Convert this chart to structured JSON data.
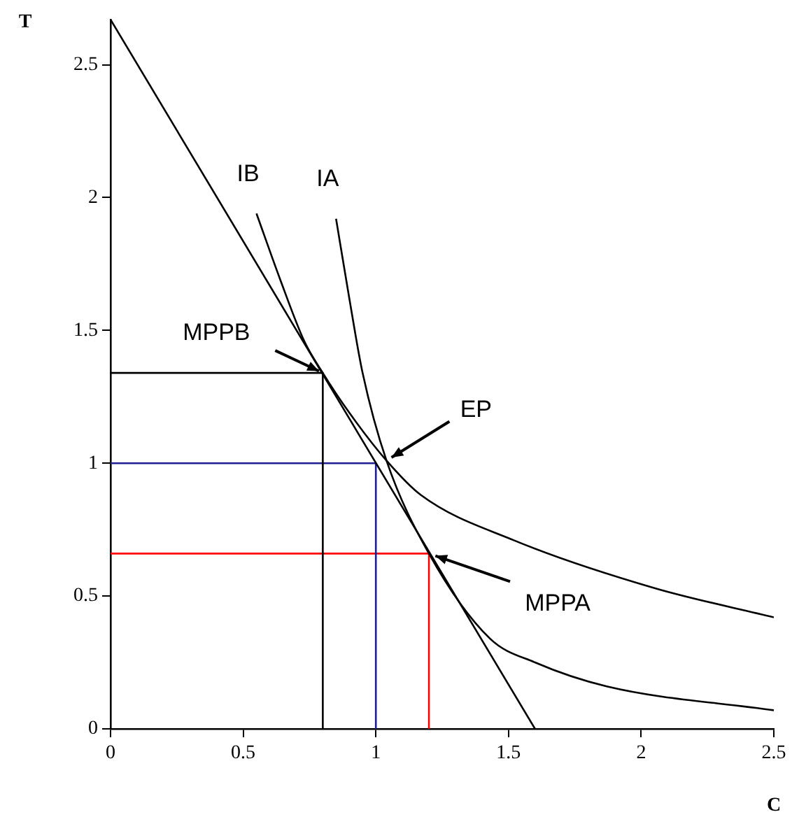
{
  "chart_data": {
    "type": "line",
    "xlabel": "C",
    "ylabel": "T",
    "xlim": [
      0,
      2.5
    ],
    "ylim": [
      0,
      2.67
    ],
    "xticks": [
      0,
      0.5,
      1,
      1.5,
      2,
      2.5
    ],
    "yticks": [
      0,
      0.5,
      1,
      1.5,
      2,
      2.5
    ],
    "grid": false,
    "legend": false,
    "marker": "none",
    "line_style": "solid",
    "series": [
      {
        "color": "#000000",
        "x": [
          0,
          1.6
        ],
        "values": [
          2.67,
          0
        ]
      },
      {
        "name": "IB",
        "color": "#000000",
        "x": [
          0.55,
          0.64,
          0.73,
          0.8,
          0.9,
          1.04,
          1.17,
          1.52,
          2.05,
          2.5
        ],
        "values": [
          1.94,
          1.69,
          1.46,
          1.34,
          1.19,
          1.01,
          0.88,
          0.71,
          0.53,
          0.42
        ]
      },
      {
        "name": "IA",
        "color": "#000000",
        "x": [
          0.85,
          0.9,
          0.95,
          1.04,
          1.2,
          1.43,
          1.6,
          1.87,
          2.5
        ],
        "values": [
          1.92,
          1.62,
          1.34,
          1.01,
          0.66,
          0.34,
          0.25,
          0.16,
          0.07
        ]
      },
      {
        "color": "#000000",
        "x": [
          0,
          0.8,
          0.8
        ],
        "values": [
          1.34,
          1.34,
          0
        ]
      },
      {
        "color": "#1f1f8f",
        "x": [
          0,
          1,
          1
        ],
        "values": [
          1,
          1,
          0
        ]
      },
      {
        "color": "#ff0000",
        "x": [
          0,
          1.2,
          1.2
        ],
        "values": [
          0.66,
          0.66,
          0
        ]
      }
    ],
    "annotations": [
      {
        "text": "MPPB",
        "x": 0.8,
        "y": 1.34
      },
      {
        "text": "EP",
        "x": 1.04,
        "y": 1.01
      },
      {
        "text": "MPPA",
        "x": 1.2,
        "y": 0.66
      }
    ]
  }
}
